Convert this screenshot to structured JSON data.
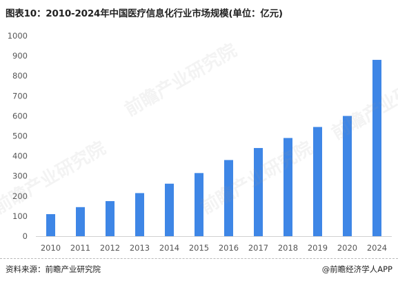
{
  "page": {
    "title": "图表10：2010-2024年中国医疗信息化行业市场规模(单位：亿元)"
  },
  "footer": {
    "source": "资料来源：前瞻产业研究院",
    "brand": "@前瞻经济学人APP"
  },
  "watermark": {
    "text": "前瞻产业研究院"
  },
  "colors": {
    "bar": "#3e86e6",
    "axis_text": "#555555",
    "gridline": "#e6e6e6"
  },
  "chart_data": {
    "type": "bar",
    "title": "图表10：2010-2024年中国医疗信息化行业市场规模(单位：亿元)",
    "categories": [
      "2010",
      "2011",
      "2012",
      "2013",
      "2014",
      "2015",
      "2016",
      "2017",
      "2018",
      "2019",
      "2020",
      "2024"
    ],
    "values": [
      110,
      145,
      175,
      215,
      262,
      315,
      380,
      440,
      490,
      545,
      600,
      880
    ],
    "ylim": [
      0,
      1000
    ],
    "yticks": [
      0,
      100,
      200,
      300,
      400,
      500,
      600,
      700,
      800,
      900,
      1000
    ],
    "xlabel": "",
    "ylabel": "",
    "grid": false,
    "legend": false
  }
}
